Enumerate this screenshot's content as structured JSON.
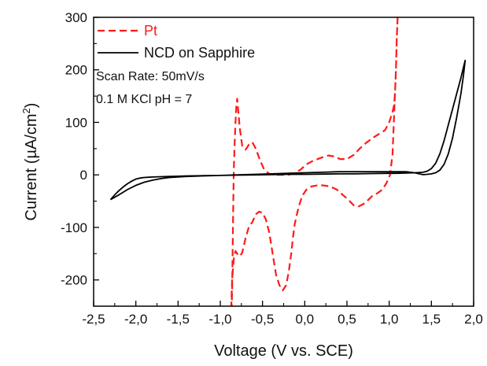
{
  "chart_data": {
    "type": "line",
    "title": "",
    "xlabel": "Voltage (V vs. SCE)",
    "ylabel": "Current  (µA/cm",
    "ylabel_superscript": "2",
    "ylabel_suffix": ")",
    "xlim": [
      -2.5,
      2.0
    ],
    "ylim": [
      -250,
      300
    ],
    "xticks": [
      -2.5,
      -2.0,
      -1.5,
      -1.0,
      -0.5,
      0.0,
      0.5,
      1.0,
      1.5,
      2.0
    ],
    "xtick_labels": [
      "-2,5",
      "-2,0",
      "-1,5",
      "-1,0",
      "-0,5",
      "0,0",
      "0,5",
      "1,0",
      "1,5",
      "2,0"
    ],
    "yticks": [
      -200,
      -100,
      0,
      100,
      200,
      300
    ],
    "ytick_labels": [
      "-200",
      "-100",
      "0",
      "100",
      "200",
      "300"
    ],
    "grid": false,
    "legend_position": "top-left",
    "annotations": [
      "Scan Rate: 50mV/s",
      "0.1 M KCl pH = 7"
    ],
    "series": [
      {
        "name": "Pt",
        "style": "dashed",
        "color": "#ff1a1a",
        "x": [
          1.1,
          1.09,
          1.08,
          1.07,
          1.06,
          1.04,
          1.0,
          0.95,
          0.88,
          0.8,
          0.72,
          0.65,
          0.58,
          0.5,
          0.42,
          0.35,
          0.28,
          0.2,
          0.1,
          0.02,
          -0.05,
          -0.12,
          -0.2,
          -0.28,
          -0.35,
          -0.42,
          -0.48,
          -0.53,
          -0.58,
          -0.62,
          -0.66,
          -0.7,
          -0.74,
          -0.77,
          -0.8,
          -0.81,
          -0.82,
          -0.83,
          -0.84,
          -0.845,
          -0.85,
          -0.855,
          -0.86,
          -0.865,
          -0.87,
          -0.87,
          -0.87,
          -0.87,
          -0.86,
          -0.84,
          -0.82,
          -0.8,
          -0.77,
          -0.74,
          -0.7,
          -0.66,
          -0.62,
          -0.58,
          -0.54,
          -0.5,
          -0.46,
          -0.42,
          -0.38,
          -0.34,
          -0.3,
          -0.26,
          -0.22,
          -0.19,
          -0.16,
          -0.14,
          -0.12,
          -0.1,
          -0.07,
          -0.03,
          0.02,
          0.08,
          0.15,
          0.22,
          0.3,
          0.38,
          0.45,
          0.52,
          0.58,
          0.64,
          0.7,
          0.75,
          0.8,
          0.86,
          0.92,
          0.97,
          1.01,
          1.04,
          1.06,
          1.08,
          1.09,
          1.1
        ],
        "y": [
          300,
          260,
          200,
          160,
          135,
          120,
          100,
          85,
          78,
          70,
          60,
          50,
          38,
          30,
          30,
          35,
          37,
          33,
          27,
          20,
          10,
          3,
          0,
          0,
          0,
          2,
          10,
          28,
          50,
          62,
          58,
          48,
          55,
          90,
          145,
          130,
          100,
          60,
          10,
          -40,
          -100,
          -160,
          -220,
          -250,
          -250,
          -250,
          -250,
          -250,
          -200,
          -160,
          -145,
          -150,
          -155,
          -148,
          -120,
          -98,
          -90,
          -75,
          -70,
          -72,
          -85,
          -110,
          -150,
          -190,
          -210,
          -220,
          -210,
          -185,
          -150,
          -120,
          -95,
          -80,
          -60,
          -40,
          -28,
          -22,
          -20,
          -20,
          -22,
          -28,
          -38,
          -48,
          -58,
          -60,
          -55,
          -48,
          -40,
          -35,
          -28,
          -15,
          0,
          40,
          120,
          200,
          260,
          300
        ]
      },
      {
        "name": "NCD on Sapphire",
        "style": "solid",
        "color": "#000000",
        "x": [
          -2.3,
          -2.25,
          -2.2,
          -2.15,
          -2.1,
          -2.05,
          -2.0,
          -1.95,
          -1.9,
          -1.85,
          -1.8,
          -1.7,
          -1.6,
          -1.5,
          -1.4,
          -1.2,
          -1.0,
          -0.8,
          -0.6,
          -0.4,
          -0.2,
          0.0,
          0.2,
          0.4,
          0.6,
          0.8,
          1.0,
          1.1,
          1.2,
          1.3,
          1.4,
          1.45,
          1.5,
          1.55,
          1.6,
          1.65,
          1.7,
          1.75,
          1.8,
          1.85,
          1.88,
          1.9,
          1.88,
          1.85,
          1.8,
          1.75,
          1.7,
          1.65,
          1.6,
          1.55,
          1.5,
          1.45,
          1.4,
          1.3,
          1.2,
          1.0,
          0.8,
          0.6,
          0.4,
          0.2,
          0.0,
          -0.2,
          -0.4,
          -0.6,
          -0.8,
          -1.0,
          -1.2,
          -1.4,
          -1.5,
          -1.6,
          -1.7,
          -1.8,
          -1.9,
          -2.0,
          -2.1,
          -2.2,
          -2.3
        ],
        "y": [
          -47,
          -38,
          -30,
          -23,
          -17,
          -12,
          -8,
          -6,
          -5,
          -4.5,
          -4,
          -3.5,
          -3,
          -2.5,
          -2,
          -1.5,
          -1,
          -0.5,
          0,
          0.5,
          1,
          1,
          1.5,
          2,
          2,
          2.5,
          3,
          3,
          3.5,
          4,
          5,
          7,
          12,
          22,
          40,
          65,
          95,
          125,
          155,
          185,
          205,
          218,
          190,
          155,
          110,
          70,
          40,
          20,
          9,
          4,
          2,
          1,
          0.5,
          4,
          6,
          6,
          6,
          6,
          6,
          5,
          4,
          3,
          2,
          1,
          0,
          -1,
          -2,
          -3,
          -4,
          -5,
          -7,
          -10,
          -14,
          -20,
          -28,
          -38,
          -47
        ]
      }
    ]
  }
}
